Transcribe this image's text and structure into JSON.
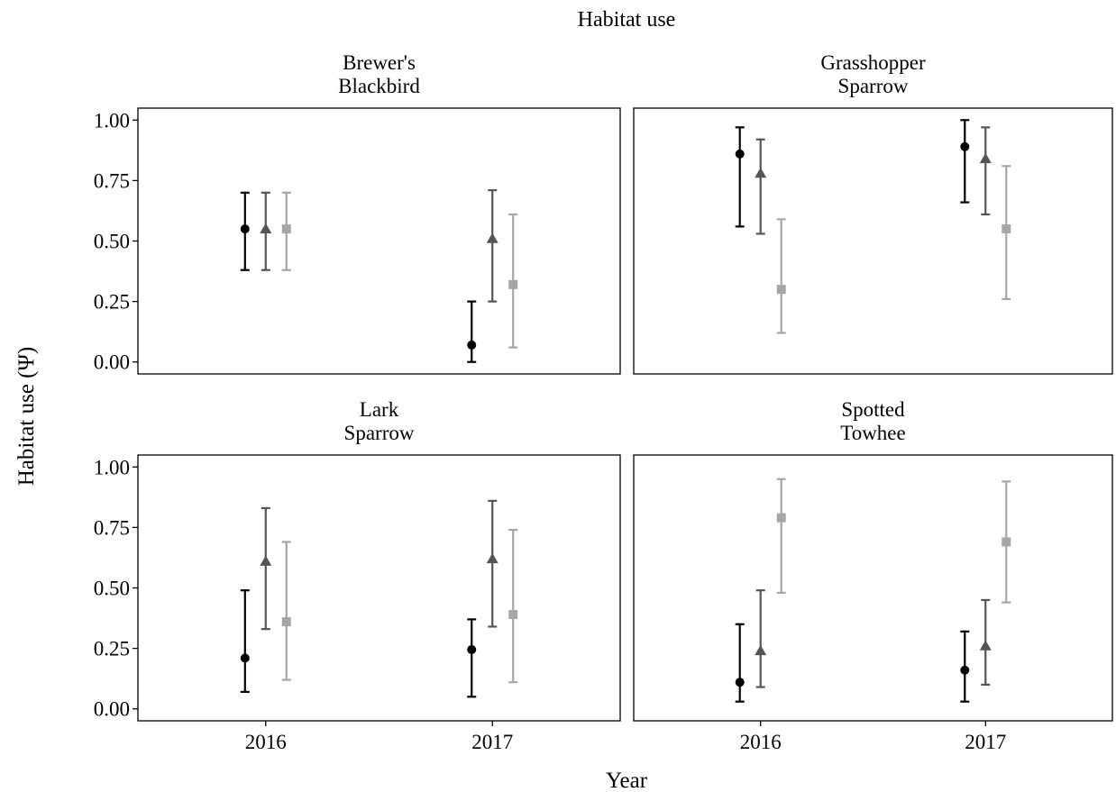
{
  "chart_data": {
    "type": "scatter",
    "title": "Habitat use",
    "xlabel": "Year",
    "ylabel": "Habitat use (Ψ)",
    "x_categories": [
      "2016",
      "2017"
    ],
    "y_ticks": [
      "0.00",
      "0.25",
      "0.50",
      "0.75",
      "1.00"
    ],
    "ylim": [
      0,
      1
    ],
    "grid": false,
    "legend": "none",
    "series_styles": [
      {
        "marker": "circle",
        "color": "#000000"
      },
      {
        "marker": "triangle",
        "color": "#555555"
      },
      {
        "marker": "square",
        "color": "#a6a6a6"
      }
    ],
    "panels": [
      {
        "title_lines": [
          "Brewer's",
          "Blackbird"
        ],
        "points": [
          {
            "year": "2016",
            "series": 0,
            "value": 0.55,
            "lower": 0.38,
            "upper": 0.7
          },
          {
            "year": "2016",
            "series": 1,
            "value": 0.55,
            "lower": 0.38,
            "upper": 0.7
          },
          {
            "year": "2016",
            "series": 2,
            "value": 0.55,
            "lower": 0.38,
            "upper": 0.7
          },
          {
            "year": "2017",
            "series": 0,
            "value": 0.07,
            "lower": 0.0,
            "upper": 0.25
          },
          {
            "year": "2017",
            "series": 1,
            "value": 0.51,
            "lower": 0.25,
            "upper": 0.71
          },
          {
            "year": "2017",
            "series": 2,
            "value": 0.32,
            "lower": 0.06,
            "upper": 0.61
          }
        ]
      },
      {
        "title_lines": [
          "Grasshopper",
          "Sparrow"
        ],
        "points": [
          {
            "year": "2016",
            "series": 0,
            "value": 0.86,
            "lower": 0.56,
            "upper": 0.97
          },
          {
            "year": "2016",
            "series": 1,
            "value": 0.78,
            "lower": 0.53,
            "upper": 0.92
          },
          {
            "year": "2016",
            "series": 2,
            "value": 0.3,
            "lower": 0.12,
            "upper": 0.59
          },
          {
            "year": "2017",
            "series": 0,
            "value": 0.89,
            "lower": 0.66,
            "upper": 1.0
          },
          {
            "year": "2017",
            "series": 1,
            "value": 0.84,
            "lower": 0.61,
            "upper": 0.97
          },
          {
            "year": "2017",
            "series": 2,
            "value": 0.55,
            "lower": 0.26,
            "upper": 0.81
          }
        ]
      },
      {
        "title_lines": [
          "Lark",
          "Sparrow"
        ],
        "points": [
          {
            "year": "2016",
            "series": 0,
            "value": 0.21,
            "lower": 0.07,
            "upper": 0.49
          },
          {
            "year": "2016",
            "series": 1,
            "value": 0.61,
            "lower": 0.33,
            "upper": 0.83
          },
          {
            "year": "2016",
            "series": 2,
            "value": 0.36,
            "lower": 0.12,
            "upper": 0.69
          },
          {
            "year": "2017",
            "series": 0,
            "value": 0.245,
            "lower": 0.05,
            "upper": 0.37
          },
          {
            "year": "2017",
            "series": 1,
            "value": 0.62,
            "lower": 0.34,
            "upper": 0.86
          },
          {
            "year": "2017",
            "series": 2,
            "value": 0.39,
            "lower": 0.11,
            "upper": 0.74
          }
        ]
      },
      {
        "title_lines": [
          "Spotted",
          "Towhee"
        ],
        "points": [
          {
            "year": "2016",
            "series": 0,
            "value": 0.11,
            "lower": 0.03,
            "upper": 0.35
          },
          {
            "year": "2016",
            "series": 1,
            "value": 0.24,
            "lower": 0.09,
            "upper": 0.49
          },
          {
            "year": "2016",
            "series": 2,
            "value": 0.79,
            "lower": 0.48,
            "upper": 0.95
          },
          {
            "year": "2017",
            "series": 0,
            "value": 0.16,
            "lower": 0.03,
            "upper": 0.32
          },
          {
            "year": "2017",
            "series": 1,
            "value": 0.26,
            "lower": 0.1,
            "upper": 0.45
          },
          {
            "year": "2017",
            "series": 2,
            "value": 0.69,
            "lower": 0.44,
            "upper": 0.94
          }
        ]
      }
    ]
  }
}
